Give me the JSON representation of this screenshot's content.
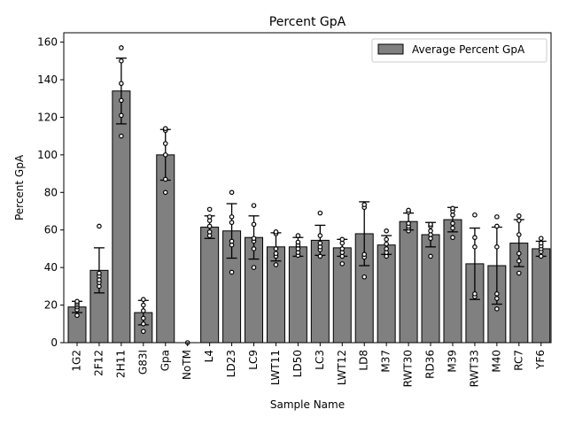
{
  "chart_data": {
    "type": "bar",
    "title": "Percent GpA",
    "xlabel": "Sample Name",
    "ylabel": "Percent GpA",
    "ylim": [
      0,
      165
    ],
    "yticks": [
      0,
      20,
      40,
      60,
      80,
      100,
      120,
      140,
      160
    ],
    "grid": false,
    "legend_placement": "top-right",
    "series": [
      {
        "name": "Average Percent GpA",
        "color": "#808080",
        "edge_color": "#000000"
      }
    ],
    "categories": [
      "1G2",
      "2F12",
      "2H11",
      "G83I",
      "Gpa",
      "NoTM",
      "L4",
      "LD23",
      "LC9",
      "LWT11",
      "LD50",
      "LC3",
      "LWT12",
      "LD8",
      "M37",
      "RWT30",
      "RD36",
      "M39",
      "RWT33",
      "M40",
      "RC7",
      "YF6"
    ],
    "values": [
      19,
      38.5,
      134,
      16,
      100,
      0,
      61.5,
      59.5,
      56,
      51,
      51,
      54.5,
      50.5,
      58,
      52,
      64.5,
      57.5,
      65.5,
      42,
      41,
      53,
      50
    ],
    "error": [
      3,
      12,
      17.5,
      6.5,
      13.5,
      0,
      6,
      14.5,
      11.5,
      7.5,
      5,
      8,
      4.5,
      17,
      5,
      4.5,
      6.5,
      6.5,
      19,
      20.5,
      12.5,
      4
    ],
    "points": [
      [
        14.5,
        17.5,
        19,
        20,
        21,
        22
      ],
      [
        30,
        32,
        33.5,
        35.5,
        37,
        62
      ],
      [
        110,
        121,
        129,
        138,
        150,
        157
      ],
      [
        6,
        10,
        13,
        17,
        20,
        23
      ],
      [
        80,
        87,
        100,
        106,
        113,
        114
      ],
      [
        0
      ],
      [
        57,
        59,
        62,
        65,
        67,
        71
      ],
      [
        37.5,
        52,
        54,
        64,
        67,
        80
      ],
      [
        40,
        50,
        54,
        55.5,
        63,
        73
      ],
      [
        41.5,
        46,
        47.5,
        50,
        58,
        59
      ],
      [
        46.5,
        48,
        50,
        52,
        53.5,
        57
      ],
      [
        46,
        49.5,
        51,
        53,
        57,
        69
      ],
      [
        42,
        46,
        48,
        50,
        53,
        55
      ],
      [
        35,
        45.5,
        47,
        72,
        73.5
      ],
      [
        46,
        48,
        50,
        52.5,
        55,
        59.5
      ],
      [
        59.5,
        61,
        62,
        63.5,
        69.5,
        70.5
      ],
      [
        46,
        55.5,
        57.5,
        59.5,
        62,
        63
      ],
      [
        56,
        61,
        63.5,
        68,
        70,
        71.5
      ],
      [
        24.5,
        26,
        51,
        56,
        68
      ],
      [
        18,
        23.5,
        26,
        51,
        62,
        67
      ],
      [
        37,
        43.5,
        47.5,
        57.5,
        65,
        67.5
      ],
      [
        46,
        48.5,
        50,
        51.5,
        53,
        55.5
      ]
    ]
  }
}
